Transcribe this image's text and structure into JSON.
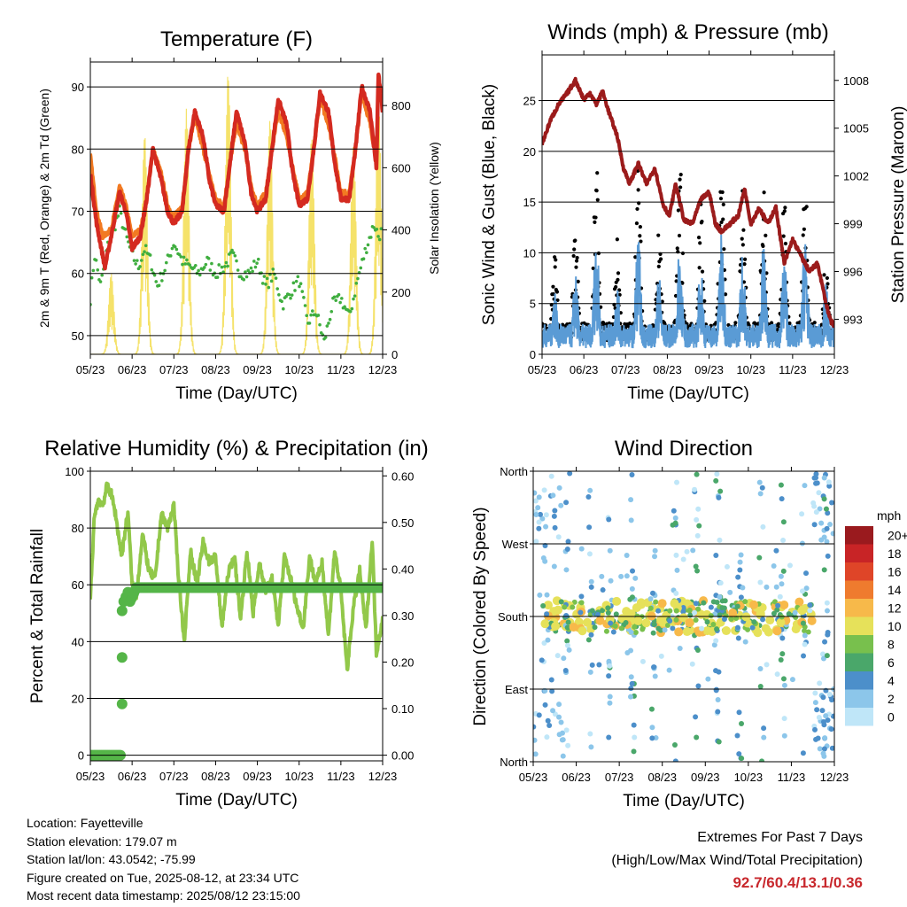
{
  "info": {
    "location": "Location: Fayetteville",
    "elevation": "Station elevation: 179.07 m",
    "latlon": "Station lat/lon: 43.0542; -75.99",
    "created": "Figure created on Tue, 2025-08-12, at 23:34 UTC",
    "recent": "Most recent data timestamp: 2025/08/12 23:15:00"
  },
  "extremes": {
    "title": "Extremes For Past 7 Days",
    "subtitle": "(High/Low/Max Wind/Total Precipitation)",
    "values": "92.7/60.4/13.1/0.36",
    "value_color": "#c8282d"
  },
  "chart_data": [
    {
      "id": "temperature",
      "type": "line",
      "title": "Temperature (F)",
      "xlabel": "Time (Day/UTC)",
      "ylabel": "2m & 9m T (Red, Orange) & 2m Td (Green)",
      "y2label": "Solar Insolation (Yellow)",
      "x_ticks": [
        "05/23",
        "06/23",
        "07/23",
        "08/23",
        "09/23",
        "10/23",
        "11/23",
        "12/23"
      ],
      "xlim": [
        0,
        7
      ],
      "ylim": [
        47,
        94
      ],
      "y_ticks": [
        50,
        60,
        70,
        80,
        90
      ],
      "y2lim": [
        0,
        940
      ],
      "y2_ticks": [
        0,
        200,
        400,
        600,
        800
      ],
      "grid": "horizontal",
      "colors": {
        "t2m": "#d42a20",
        "t9m": "#f27a22",
        "td": "#3fae3f",
        "solar": "#f5e26a"
      },
      "series": [
        {
          "key": "t2m",
          "x": [
            0,
            0.15,
            0.35,
            0.5,
            0.7,
            0.85,
            1.0,
            1.2,
            1.35,
            1.5,
            1.7,
            1.85,
            2.0,
            2.2,
            2.35,
            2.5,
            2.7,
            2.85,
            3.0,
            3.2,
            3.35,
            3.5,
            3.7,
            3.85,
            4.0,
            4.2,
            4.35,
            4.5,
            4.7,
            4.85,
            5.0,
            5.2,
            5.35,
            5.5,
            5.7,
            5.85,
            6.0,
            6.2,
            6.35,
            6.5,
            6.7,
            6.85,
            6.9,
            7.0
          ],
          "y": [
            76,
            68,
            61,
            66,
            73,
            70,
            64,
            66,
            72,
            80,
            75,
            70,
            68,
            70,
            80,
            86,
            82,
            75,
            71,
            70,
            78,
            86,
            81,
            73,
            70,
            72,
            80,
            88,
            84,
            76,
            71,
            72,
            80,
            89,
            86,
            78,
            72,
            72,
            80,
            90,
            86,
            77,
            92,
            86
          ]
        },
        {
          "key": "t9m",
          "x": [
            0,
            0.15,
            0.3,
            0.5,
            0.7,
            0.85,
            1.0,
            1.2,
            1.35,
            1.5,
            1.7,
            1.85,
            2.0,
            2.2,
            2.35,
            2.5,
            2.7,
            2.85,
            3.0,
            3.2,
            3.35,
            3.5,
            3.7,
            3.85,
            4.0,
            4.2,
            4.35,
            4.5,
            4.7,
            4.85,
            5.0,
            5.2,
            5.35,
            5.5,
            5.7,
            5.85,
            6.0,
            6.2,
            6.35,
            6.5,
            6.7,
            6.85,
            6.9,
            7.0
          ],
          "y": [
            79,
            70,
            66,
            67,
            74,
            71,
            66,
            67,
            72,
            80,
            76,
            71,
            69,
            71,
            80,
            85,
            80,
            76,
            72,
            71,
            78,
            84,
            80,
            74,
            71,
            73,
            80,
            86,
            82,
            77,
            72,
            73,
            80,
            88,
            84,
            79,
            73,
            73,
            80,
            89,
            84,
            78,
            91,
            87
          ]
        },
        {
          "key": "td",
          "x": [
            0,
            0.1,
            0.25,
            0.4,
            0.55,
            0.7,
            0.85,
            1.0,
            1.15,
            1.3,
            1.45,
            1.6,
            1.8,
            2.0,
            2.2,
            2.4,
            2.6,
            2.8,
            3.0,
            3.2,
            3.4,
            3.6,
            3.8,
            4.0,
            4.2,
            4.4,
            4.6,
            4.8,
            5.0,
            5.2,
            5.4,
            5.6,
            5.8,
            6.0,
            6.2,
            6.4,
            6.6,
            6.8,
            6.9,
            7.0
          ],
          "y": [
            56,
            63,
            58,
            64,
            67,
            70,
            66,
            63,
            61,
            64,
            62,
            58,
            61,
            65,
            62,
            61,
            60,
            62,
            60,
            61,
            63,
            60,
            60,
            62,
            58,
            60,
            55,
            57,
            59,
            52,
            54,
            49,
            55,
            56,
            53,
            59,
            64,
            68,
            66,
            67
          ]
        },
        {
          "key": "solar",
          "peaks_x": [
            0.5,
            1.3,
            2.3,
            3.3,
            4.3,
            5.3,
            6.3,
            6.9
          ],
          "peaks": [
            260,
            710,
            790,
            910,
            760,
            700,
            680,
            830
          ]
        }
      ]
    },
    {
      "id": "winds",
      "type": "scatter",
      "title": "Winds (mph) & Pressure (mb)",
      "xlabel": "Time (Day/UTC)",
      "ylabel": "Sonic Wind & Gust (Blue, Black)",
      "y2label": "Station Pressure (Maroon)",
      "x_ticks": [
        "05/23",
        "06/23",
        "07/23",
        "08/23",
        "09/23",
        "10/23",
        "11/23",
        "12/23"
      ],
      "xlim": [
        0,
        7
      ],
      "ylim": [
        0,
        29.5
      ],
      "y_ticks": [
        0,
        5,
        10,
        15,
        20,
        25
      ],
      "y2lim": [
        990.8,
        1009.6
      ],
      "y2_ticks": [
        993,
        996,
        999,
        1002,
        1005,
        1008
      ],
      "grid": "horizontal",
      "colors": {
        "wind": "#5a9bd5",
        "gust": "#000000",
        "pressure": "#9b1b1b"
      },
      "series": [
        {
          "key": "pressure",
          "x": [
            0,
            0.2,
            0.4,
            0.6,
            0.8,
            1.0,
            1.15,
            1.3,
            1.45,
            1.6,
            1.8,
            1.95,
            2.1,
            2.3,
            2.5,
            2.7,
            2.9,
            3.05,
            3.2,
            3.4,
            3.6,
            3.8,
            4.0,
            4.15,
            4.3,
            4.5,
            4.7,
            4.85,
            5.0,
            5.2,
            5.4,
            5.6,
            5.8,
            6.0,
            6.2,
            6.4,
            6.6,
            6.8,
            6.9,
            7.0
          ],
          "y": [
            1004.0,
            1005.5,
            1006.5,
            1007.2,
            1008.0,
            1006.8,
            1007.2,
            1006.5,
            1007.3,
            1006.0,
            1004.5,
            1002.5,
            1001.5,
            1002.8,
            1001.5,
            1002.5,
            1000.2,
            999.5,
            1001.5,
            999.2,
            999.0,
            1000.5,
            1001.0,
            999.0,
            998.5,
            999.0,
            999.5,
            1001.2,
            999.0,
            1000.0,
            999.0,
            1000.0,
            996.5,
            998.0,
            997.0,
            996.0,
            996.5,
            994.0,
            993.0,
            992.5
          ]
        },
        {
          "key": "wind",
          "peaks_x": [
            0.3,
            0.8,
            1.3,
            1.8,
            2.3,
            2.8,
            3.3,
            3.8,
            4.3,
            4.8,
            5.3,
            5.8,
            6.3,
            6.8
          ],
          "peaks": [
            7,
            8,
            12,
            7,
            12,
            8,
            11,
            9,
            12,
            10,
            11,
            10,
            12,
            7
          ]
        },
        {
          "key": "gust",
          "peaks_x": [
            0.3,
            0.8,
            1.3,
            1.8,
            2.3,
            2.8,
            3.3,
            3.8,
            4.3,
            4.8,
            5.3,
            5.8,
            6.3,
            6.8
          ],
          "peaks": [
            10,
            12,
            18,
            11,
            18,
            12,
            19,
            15,
            18,
            16,
            17,
            15,
            18,
            11
          ]
        }
      ]
    },
    {
      "id": "humidity",
      "type": "line",
      "title": "Relative Humidity (%) & Precipitation (in)",
      "xlabel": "Time (Day/UTC)",
      "ylabel": "Percent & Total Rainfall",
      "x_ticks": [
        "05/23",
        "06/23",
        "07/23",
        "08/23",
        "09/23",
        "10/23",
        "11/23",
        "12/23"
      ],
      "xlim": [
        0,
        7
      ],
      "ylim": [
        -2,
        100
      ],
      "y_ticks": [
        0,
        20,
        40,
        60,
        80,
        100
      ],
      "y2lim": [
        -0.0122,
        0.61
      ],
      "y2_ticks": [
        "0.00",
        "0.10",
        "0.20",
        "0.30",
        "0.40",
        "0.50",
        "0.60"
      ],
      "grid": "horizontal",
      "colors": {
        "rh": "#92c84a",
        "precip": "#55b548"
      },
      "series": [
        {
          "key": "rh",
          "x": [
            0,
            0.1,
            0.2,
            0.3,
            0.4,
            0.5,
            0.6,
            0.75,
            0.9,
            1.0,
            1.1,
            1.25,
            1.4,
            1.55,
            1.7,
            1.85,
            2.0,
            2.1,
            2.25,
            2.4,
            2.55,
            2.7,
            2.85,
            3.0,
            3.15,
            3.3,
            3.45,
            3.6,
            3.75,
            3.9,
            4.05,
            4.2,
            4.35,
            4.5,
            4.65,
            4.8,
            4.95,
            5.1,
            5.25,
            5.4,
            5.55,
            5.7,
            5.85,
            6.0,
            6.15,
            6.3,
            6.45,
            6.6,
            6.75,
            6.85,
            7.0
          ],
          "y": [
            55,
            85,
            90,
            88,
            95,
            92,
            85,
            70,
            86,
            60,
            55,
            78,
            65,
            62,
            85,
            80,
            88,
            65,
            40,
            72,
            60,
            75,
            68,
            70,
            45,
            64,
            70,
            48,
            72,
            50,
            68,
            58,
            62,
            46,
            70,
            62,
            52,
            45,
            70,
            60,
            68,
            42,
            72,
            58,
            30,
            52,
            65,
            44,
            76,
            36,
            48
          ]
        },
        {
          "key": "precip",
          "x": [
            0,
            0.75,
            0.76,
            0.85,
            0.9,
            0.95,
            1.0,
            1.1,
            7.0
          ],
          "y": [
            0,
            0,
            0.11,
            0.21,
            0.31,
            0.33,
            0.34,
            0.36,
            0.36
          ]
        }
      ]
    },
    {
      "id": "wind_direction",
      "type": "scatter",
      "title": "Wind Direction",
      "xlabel": "Time (Day/UTC)",
      "ylabel": "Direction (Colored By Speed)",
      "x_ticks": [
        "05/23",
        "06/23",
        "07/23",
        "08/23",
        "09/23",
        "10/23",
        "11/23",
        "12/23"
      ],
      "xlim": [
        0,
        7
      ],
      "ylim": [
        0,
        360
      ],
      "y_ticks": [
        "North",
        "East",
        "South",
        "West",
        "North"
      ],
      "grid": "horizontal",
      "colorbar": {
        "title": "mph",
        "labels": [
          "0",
          "2",
          "4",
          "6",
          "8",
          "10",
          "12",
          "14",
          "16",
          "18",
          "20+"
        ],
        "colors": [
          "#bfe6f8",
          "#8cc6ea",
          "#4c8fca",
          "#4aa76a",
          "#78c04d",
          "#e6e15a",
          "#f7b94a",
          "#ef7b2e",
          "#df4528",
          "#c82426",
          "#9a1a1e"
        ]
      }
    }
  ]
}
